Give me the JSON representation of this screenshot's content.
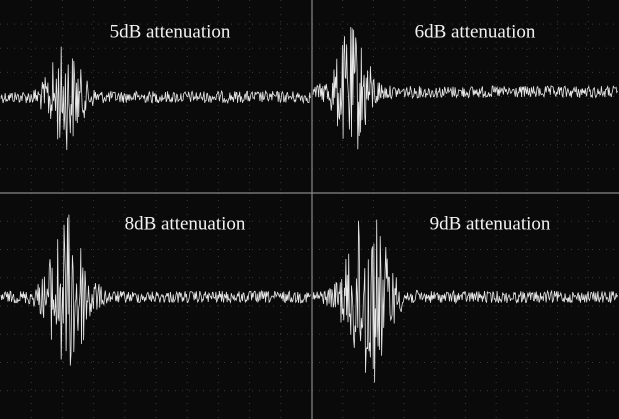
{
  "panels": [
    {
      "label": "5dB attenuation"
    },
    {
      "label": "6dB attenuation"
    },
    {
      "label": "8dB attenuation"
    },
    {
      "label": "9dB attenuation"
    }
  ]
}
